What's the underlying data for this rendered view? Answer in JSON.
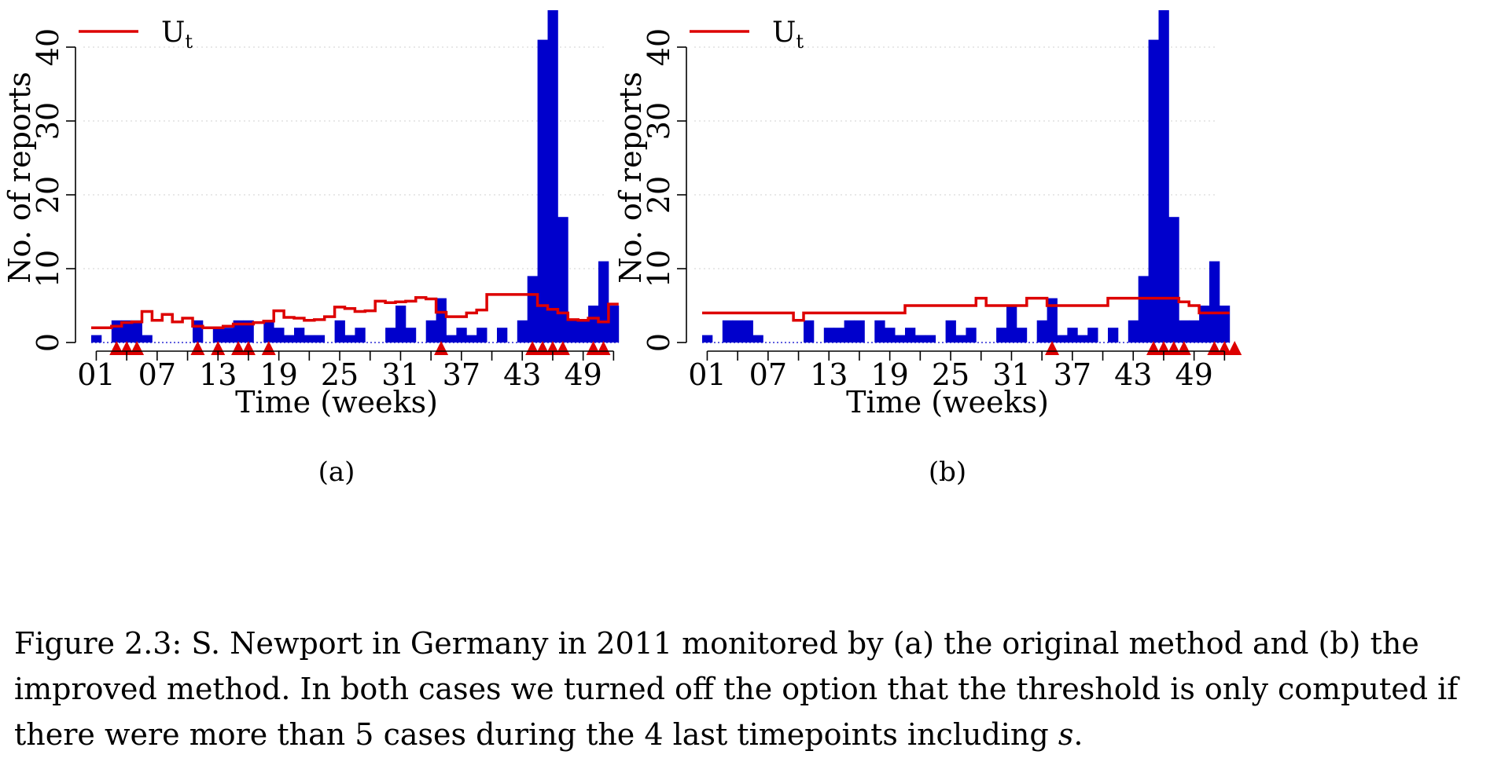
{
  "chart_data": [
    {
      "type": "bar",
      "panel_label": "(a)",
      "xlabel": "Time (weeks)",
      "ylabel": "No. of reports",
      "x_tick_labels": [
        "01",
        "07",
        "13",
        "19",
        "25",
        "31",
        "37",
        "43",
        "49"
      ],
      "y_tick_labels": [
        "0",
        "10",
        "20",
        "30",
        "40"
      ],
      "ylim": [
        0,
        45
      ],
      "weeks": [
        1,
        52
      ],
      "legend": {
        "label": "U",
        "subscript": "t",
        "placement": "top-left"
      },
      "series": [
        {
          "kind": "bar",
          "color": "#0000cc",
          "values": [
            1,
            0,
            3,
            3,
            3,
            1,
            0,
            0,
            0,
            0,
            3,
            0,
            2,
            2,
            3,
            3,
            0,
            3,
            2,
            1,
            2,
            1,
            1,
            0,
            3,
            1,
            2,
            0,
            0,
            2,
            5,
            2,
            0,
            3,
            6,
            1,
            2,
            1,
            2,
            0,
            2,
            0,
            3,
            9,
            41,
            45,
            17,
            3,
            3,
            5,
            11,
            5
          ]
        },
        {
          "kind": "step-line",
          "name": "U",
          "color": "#dd0000",
          "values": [
            2,
            2,
            2.2,
            2.7,
            2.8,
            4.2,
            3,
            3.8,
            2.8,
            3.3,
            2.2,
            2,
            2,
            2.2,
            2.5,
            2.5,
            2.7,
            2.9,
            4.3,
            3.4,
            3.3,
            3,
            3.1,
            3.5,
            4.8,
            4.6,
            4.2,
            4.3,
            5.6,
            5.4,
            5.5,
            5.6,
            6.1,
            5.9,
            4.1,
            3.5,
            3.5,
            4,
            4.4,
            6.5,
            6.5,
            6.5,
            6.5,
            6.5,
            5,
            4.5,
            4,
            3.1,
            3,
            3.3,
            2.8,
            5.2
          ]
        },
        {
          "kind": "alarm-triangles",
          "color": "#dd0000",
          "weeks": [
            3,
            4,
            5,
            11,
            13,
            15,
            16,
            18,
            35,
            44,
            45,
            46,
            47,
            50,
            51
          ]
        }
      ]
    },
    {
      "type": "bar",
      "panel_label": "(b)",
      "xlabel": "Time (weeks)",
      "ylabel": "No. of reports",
      "x_tick_labels": [
        "01",
        "07",
        "13",
        "19",
        "25",
        "31",
        "37",
        "43",
        "49"
      ],
      "y_tick_labels": [
        "0",
        "10",
        "20",
        "30",
        "40"
      ],
      "ylim": [
        0,
        45
      ],
      "weeks": [
        1,
        52
      ],
      "legend": {
        "label": "U",
        "subscript": "t",
        "placement": "top-left"
      },
      "series": [
        {
          "kind": "bar",
          "color": "#0000cc",
          "values": [
            1,
            0,
            3,
            3,
            3,
            1,
            0,
            0,
            0,
            0,
            3,
            0,
            2,
            2,
            3,
            3,
            0,
            3,
            2,
            1,
            2,
            1,
            1,
            0,
            3,
            1,
            2,
            0,
            0,
            2,
            5,
            2,
            0,
            3,
            6,
            1,
            2,
            1,
            2,
            0,
            2,
            0,
            3,
            9,
            41,
            45,
            17,
            3,
            3,
            5,
            11,
            5
          ]
        },
        {
          "kind": "step-line",
          "name": "U",
          "color": "#dd0000",
          "values": [
            4,
            4,
            4,
            4,
            4,
            4,
            4,
            4,
            4,
            3,
            4,
            4,
            4,
            4,
            4,
            4,
            4,
            4,
            4,
            4,
            5,
            5,
            5,
            5,
            5,
            5,
            5,
            6,
            5,
            5,
            5,
            5,
            6,
            6,
            5,
            5,
            5,
            5,
            5,
            5,
            6,
            6,
            6,
            6,
            6,
            6,
            6,
            5.5,
            5,
            4,
            4,
            4
          ]
        },
        {
          "kind": "alarm-triangles",
          "color": "#dd0000",
          "weeks": [
            35,
            45,
            46,
            47,
            48,
            51,
            52,
            53
          ]
        }
      ]
    }
  ],
  "caption": {
    "text": "Figure 2.3: S. Newport in Germany in 2011 monitored by (a) the original method and (b) the improved method. In both cases we turned off the option that the threshold is only computed if there were more than 5 cases during the 4 last timepoints including ",
    "variable": "s",
    "end": "."
  }
}
